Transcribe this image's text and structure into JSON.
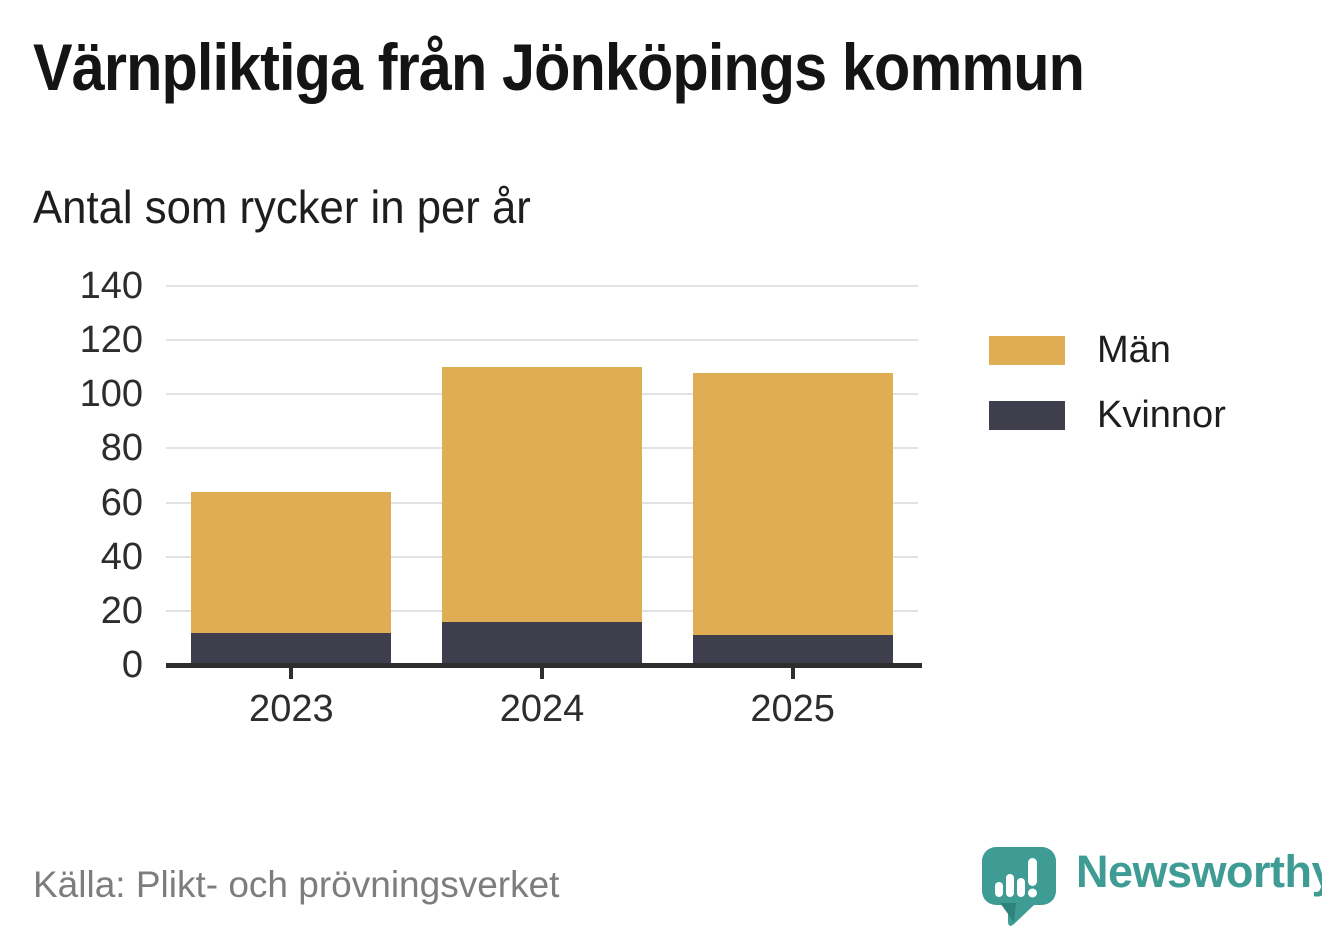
{
  "header": {
    "title": "Värnpliktiga från Jönköpings kommun",
    "subtitle": "Antal som rycker in per år"
  },
  "legend": [
    {
      "label": "Män",
      "color": "#DEAD54"
    },
    {
      "label": "Kvinnor",
      "color": "#3E3E4D"
    }
  ],
  "chart_data": {
    "type": "bar",
    "stacked": true,
    "title": "Värnpliktiga från Jönköpings kommun",
    "subtitle": "Antal som rycker in per år",
    "categories": [
      "2023",
      "2024",
      "2025"
    ],
    "series": [
      {
        "name": "Kvinnor",
        "color": "#3E3E4D",
        "values": [
          12,
          16,
          11
        ]
      },
      {
        "name": "Män",
        "color": "#DEAD54",
        "values": [
          52,
          94,
          97
        ]
      }
    ],
    "totals": [
      64,
      110,
      108
    ],
    "xlabel": "",
    "ylabel": "",
    "ylim": [
      0,
      140
    ],
    "yticks": [
      0,
      20,
      40,
      60,
      80,
      100,
      120,
      140
    ],
    "grid": true,
    "legend_position": "right",
    "colors": {
      "axis": "#2E2E2E",
      "grid": "#E2E2E2",
      "tick_label": "#2D2D2D"
    }
  },
  "footer": {
    "source": "Källa: Plikt- och prövningsverket",
    "brand": "Newsworthy",
    "brand_color": "#3E9C94",
    "brand_icon": "newsworthy-speech-bubble-chart-icon"
  }
}
